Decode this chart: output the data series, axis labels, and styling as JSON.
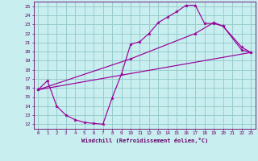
{
  "xlabel": "Windchill (Refroidissement éolien,°C)",
  "bg_color": "#c8eef0",
  "line_color": "#990099",
  "grid_color": "#99cccc",
  "axis_color": "#660066",
  "xlim": [
    -0.5,
    23.5
  ],
  "ylim": [
    11.5,
    25.5
  ],
  "xticks": [
    0,
    1,
    2,
    3,
    4,
    5,
    6,
    7,
    8,
    9,
    10,
    11,
    12,
    13,
    14,
    15,
    16,
    17,
    18,
    19,
    20,
    21,
    22,
    23
  ],
  "yticks": [
    12,
    13,
    14,
    15,
    16,
    17,
    18,
    19,
    20,
    21,
    22,
    23,
    24,
    25
  ],
  "curve1_x": [
    0,
    1,
    2,
    3,
    4,
    5,
    6,
    7,
    8,
    9,
    10,
    11,
    12,
    13,
    14,
    15,
    16,
    17,
    18,
    19,
    20,
    22,
    23
  ],
  "curve1_y": [
    15.8,
    16.8,
    14.0,
    13.0,
    12.5,
    12.2,
    12.1,
    12.0,
    14.9,
    17.5,
    20.8,
    21.1,
    22.0,
    23.2,
    23.8,
    24.4,
    25.1,
    25.1,
    23.1,
    23.1,
    22.8,
    20.2,
    19.9
  ],
  "curve2_x": [
    0,
    10,
    17,
    19,
    20,
    22,
    23
  ],
  "curve2_y": [
    15.8,
    19.2,
    22.0,
    23.2,
    22.8,
    20.5,
    19.9
  ],
  "curve3_x": [
    0,
    23
  ],
  "curve3_y": [
    15.8,
    19.9
  ]
}
